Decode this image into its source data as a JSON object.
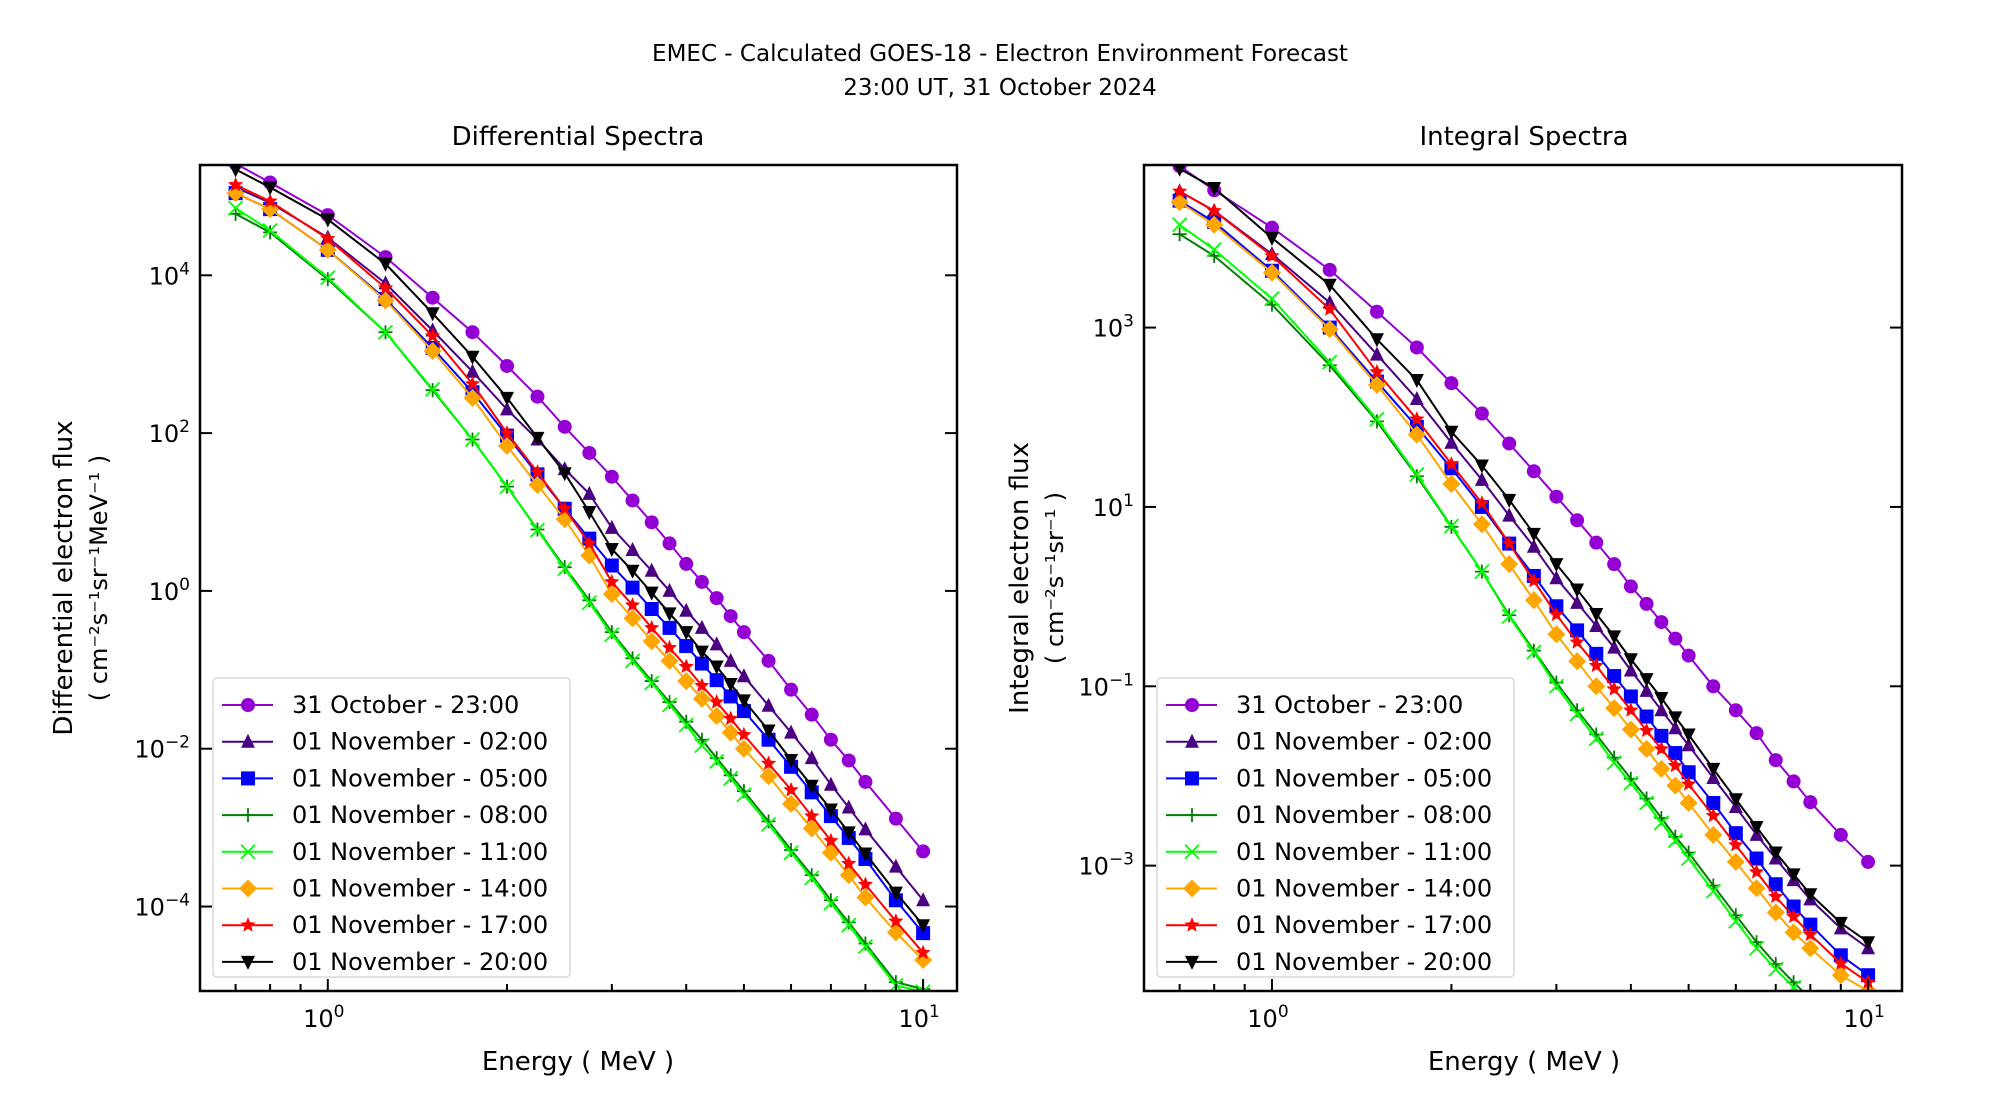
{
  "figure": {
    "title_line1": "EMEC - Calculated GOES-18 - Electron Environment Forecast",
    "title_line2": "23:00 UT, 31 October 2024"
  },
  "chart_data": [
    {
      "type": "line",
      "title": "Differential Spectra",
      "xlabel": "Energy ( MeV )",
      "ylabel_line1": "Differential electron flux",
      "ylabel_line2": "( cm⁻²s⁻¹sr⁻¹MeV⁻¹ )",
      "xscale": "log",
      "yscale": "log",
      "xlim": [
        0.61,
        11.4
      ],
      "ylim": [
        8.5e-06,
        250000.0
      ],
      "xticks": [
        {
          "value": 1,
          "label": "10",
          "exp": "0"
        },
        {
          "value": 10,
          "label": "10",
          "exp": "1"
        }
      ],
      "yticks": [
        {
          "value": 10000.0,
          "label": "10",
          "exp": "4"
        },
        {
          "value": 100.0,
          "label": "10",
          "exp": "2"
        },
        {
          "value": 1,
          "label": "10",
          "exp": "0"
        },
        {
          "value": 0.01,
          "label": "10",
          "exp": "−2"
        },
        {
          "value": 0.0001,
          "label": "10",
          "exp": "−4"
        }
      ],
      "grid": false,
      "legend": "lower-left",
      "x": [
        0.7,
        0.8,
        1.0,
        1.25,
        1.5,
        1.75,
        2.0,
        2.25,
        2.5,
        2.75,
        3.0,
        3.25,
        3.5,
        3.75,
        4.0,
        4.25,
        4.5,
        4.75,
        5.0,
        5.5,
        6.0,
        6.5,
        7.0,
        7.5,
        8.0,
        9.0,
        10.0
      ],
      "series": [
        {
          "name": "31 October - 23:00",
          "color": "#9400d3",
          "marker": "circle",
          "values": [
            260000.0,
            150000.0,
            58000.0,
            17000.0,
            5200.0,
            1900.0,
            710.0,
            290.0,
            120.0,
            56,
            28,
            14,
            7.4,
            4.0,
            2.2,
            1.3,
            0.81,
            0.48,
            0.3,
            0.13,
            0.056,
            0.027,
            0.013,
            0.0071,
            0.0038,
            0.0013,
            0.0005
          ]
        },
        {
          "name": "01 November - 02:00",
          "color": "#4b0082",
          "marker": "triangle-up",
          "values": [
            130000.0,
            83000.0,
            30000.0,
            7900.0,
            2000.0,
            600.0,
            200.0,
            83,
            35,
            17,
            6.3,
            3.3,
            1.8,
            1.0,
            0.56,
            0.34,
            0.21,
            0.13,
            0.083,
            0.035,
            0.016,
            0.0076,
            0.0035,
            0.0018,
            0.00095,
            0.00032,
            0.00012
          ]
        },
        {
          "name": "01 November - 05:00",
          "color": "#0000ff",
          "marker": "square",
          "values": [
            110000.0,
            69000.0,
            21000.0,
            5000.0,
            1200.0,
            330.0,
            93,
            30,
            11,
            4.6,
            2.1,
            1.1,
            0.59,
            0.34,
            0.2,
            0.12,
            0.074,
            0.046,
            0.03,
            0.013,
            0.0059,
            0.0028,
            0.0014,
            0.00074,
            0.0004,
            0.00012,
            4.6e-05
          ]
        },
        {
          "name": "01 November - 08:00",
          "color": "#008000",
          "marker": "plus",
          "values": [
            60000.0,
            35000.0,
            8900.0,
            1900.0,
            350.0,
            83,
            21,
            6.0,
            2.0,
            0.76,
            0.3,
            0.14,
            0.072,
            0.039,
            0.022,
            0.013,
            0.0076,
            0.0046,
            0.0029,
            0.0012,
            0.00052,
            0.00025,
            0.00012,
            6.3e-05,
            3.4e-05,
            1.1e-05,
            9e-06
          ]
        },
        {
          "name": "01 November - 11:00",
          "color": "#00ff00",
          "marker": "x",
          "values": [
            71000.0,
            37000.0,
            9300.0,
            1900.0,
            360.0,
            83,
            21,
            5.9,
            1.9,
            0.71,
            0.28,
            0.13,
            0.068,
            0.036,
            0.02,
            0.011,
            0.0069,
            0.0042,
            0.0026,
            0.0011,
            0.00048,
            0.00023,
            0.00011,
            5.8e-05,
            3.1e-05,
            1e-05,
            8.3e-06
          ]
        },
        {
          "name": "01 November - 14:00",
          "color": "#ffa500",
          "marker": "diamond",
          "values": [
            110000.0,
            69000.0,
            21000.0,
            4800.0,
            1100.0,
            280.0,
            69,
            22,
            8.1,
            2.8,
            0.91,
            0.45,
            0.23,
            0.13,
            0.072,
            0.043,
            0.026,
            0.016,
            0.01,
            0.0045,
            0.002,
            0.00098,
            0.00048,
            0.00025,
            0.00013,
            4.7e-05,
            2.1e-05
          ]
        },
        {
          "name": "01 November - 17:00",
          "color": "#ff0000",
          "marker": "star",
          "values": [
            140000.0,
            87000.0,
            29000.0,
            6900.0,
            1700.0,
            420.0,
            100.0,
            32,
            11,
            4.0,
            1.3,
            0.66,
            0.34,
            0.19,
            0.11,
            0.063,
            0.039,
            0.024,
            0.015,
            0.0065,
            0.003,
            0.0014,
            0.00068,
            0.00035,
            0.00019,
            6.5e-05,
            2.6e-05
          ]
        },
        {
          "name": "01 November - 20:00",
          "color": "#000000",
          "marker": "triangle-down",
          "values": [
            220000.0,
            130000.0,
            51000.0,
            14000.0,
            3300.0,
            930.0,
            280.0,
            87,
            31,
            10,
            3.4,
            1.8,
            0.95,
            0.52,
            0.3,
            0.17,
            0.11,
            0.066,
            0.041,
            0.017,
            0.0072,
            0.0034,
            0.0017,
            0.00087,
            0.00047,
            0.00015,
            5.8e-05
          ]
        }
      ]
    },
    {
      "type": "line",
      "title": "Integral Spectra",
      "xlabel": "Energy ( MeV )",
      "ylabel_line1": "Integral electron flux",
      "ylabel_line2": "( cm⁻²s⁻¹sr⁻¹ )",
      "xscale": "log",
      "yscale": "log",
      "xlim": [
        0.61,
        11.4
      ],
      "ylim": [
        4e-05,
        65000.0
      ],
      "xticks": [
        {
          "value": 1,
          "label": "10",
          "exp": "0"
        },
        {
          "value": 10,
          "label": "10",
          "exp": "1"
        }
      ],
      "yticks": [
        {
          "value": 1000.0,
          "label": "10",
          "exp": "3"
        },
        {
          "value": 10.0,
          "label": "10",
          "exp": "1"
        },
        {
          "value": 0.1,
          "label": "10",
          "exp": "−1"
        },
        {
          "value": 0.001,
          "label": "10",
          "exp": "−3"
        }
      ],
      "grid": false,
      "legend": "lower-left",
      "x": [
        0.7,
        0.8,
        1.0,
        1.25,
        1.5,
        1.75,
        2.0,
        2.25,
        2.5,
        2.75,
        3.0,
        3.25,
        3.5,
        3.75,
        4.0,
        4.25,
        4.5,
        4.75,
        5.0,
        5.5,
        6.0,
        6.5,
        7.0,
        7.5,
        8.0,
        9.0,
        10.0
      ],
      "series": [
        {
          "name": "31 October - 23:00",
          "color": "#9400d3",
          "marker": "circle",
          "values": [
            63000.0,
            34000.0,
            13000.0,
            4400.0,
            1500.0,
            600.0,
            240.0,
            110.0,
            51,
            25,
            13,
            7.1,
            4.0,
            2.3,
            1.3,
            0.83,
            0.52,
            0.34,
            0.22,
            0.1,
            0.054,
            0.03,
            0.015,
            0.0087,
            0.0051,
            0.0022,
            0.0011
          ]
        },
        {
          "name": "01 November - 02:00",
          "color": "#4b0082",
          "marker": "triangle-up",
          "values": [
            33000.0,
            20000.0,
            6600.0,
            1900.0,
            500.0,
            160.0,
            52,
            20,
            8.0,
            3.6,
            1.6,
            0.85,
            0.47,
            0.27,
            0.15,
            0.089,
            0.054,
            0.034,
            0.022,
            0.0095,
            0.0045,
            0.0022,
            0.0012,
            0.00069,
            0.00042,
            0.0002,
            0.00012
          ]
        },
        {
          "name": "01 November - 05:00",
          "color": "#0000ff",
          "marker": "square",
          "values": [
            26000.0,
            15000.0,
            4300.0,
            1000.0,
            250.0,
            78,
            27,
            10,
            3.9,
            1.7,
            0.78,
            0.42,
            0.23,
            0.13,
            0.077,
            0.046,
            0.028,
            0.018,
            0.011,
            0.005,
            0.0023,
            0.0012,
            0.00062,
            0.00035,
            0.00022,
            0.0001,
            6e-05
          ]
        },
        {
          "name": "01 November - 08:00",
          "color": "#008000",
          "marker": "plus",
          "values": [
            11000.0,
            6300.0,
            1800.0,
            380.0,
            90,
            22,
            6.0,
            1.9,
            0.62,
            0.25,
            0.11,
            0.054,
            0.029,
            0.016,
            0.0093,
            0.0056,
            0.0034,
            0.0021,
            0.0014,
            0.0006,
            0.00028,
            0.00014,
            8e-05,
            5e-05,
            3.3e-05,
            1.6e-05,
            1e-05
          ]
        },
        {
          "name": "01 November - 11:00",
          "color": "#00ff00",
          "marker": "x",
          "values": [
            14000.0,
            7400.0,
            2100.0,
            410.0,
            95,
            23,
            6.1,
            1.9,
            0.6,
            0.24,
            0.1,
            0.049,
            0.026,
            0.014,
            0.0083,
            0.005,
            0.003,
            0.0019,
            0.0012,
            0.00052,
            0.00024,
            0.00012,
            7e-05,
            4.4e-05,
            3e-05,
            1.5e-05,
            9.5e-06
          ]
        },
        {
          "name": "01 November - 14:00",
          "color": "#ffa500",
          "marker": "diamond",
          "values": [
            25000.0,
            14000.0,
            4100.0,
            960.0,
            230.0,
            64,
            18,
            6.4,
            2.3,
            0.91,
            0.38,
            0.19,
            0.1,
            0.057,
            0.033,
            0.02,
            0.012,
            0.0078,
            0.005,
            0.0022,
            0.0011,
            0.00056,
            0.0003,
            0.00018,
            0.00012,
            6e-05,
            4e-05
          ]
        },
        {
          "name": "01 November - 17:00",
          "color": "#ff0000",
          "marker": "star",
          "values": [
            33000.0,
            20000.0,
            6300.0,
            1600.0,
            320.0,
            95,
            30,
            11,
            3.9,
            1.5,
            0.63,
            0.31,
            0.17,
            0.093,
            0.054,
            0.032,
            0.02,
            0.013,
            0.0081,
            0.0036,
            0.0017,
            0.00085,
            0.00045,
            0.00027,
            0.00017,
            8.1e-05,
            5e-05
          ]
        },
        {
          "name": "01 November - 20:00",
          "color": "#000000",
          "marker": "triangle-down",
          "values": [
            59000.0,
            36000.0,
            10000.0,
            3000.0,
            740.0,
            260.0,
            69,
            29,
            12,
            5.0,
            2.3,
            1.2,
            0.64,
            0.36,
            0.2,
            0.12,
            0.074,
            0.045,
            0.029,
            0.012,
            0.0055,
            0.0027,
            0.0014,
            0.0008,
            0.00048,
            0.00023,
            0.00014
          ]
        }
      ]
    }
  ]
}
